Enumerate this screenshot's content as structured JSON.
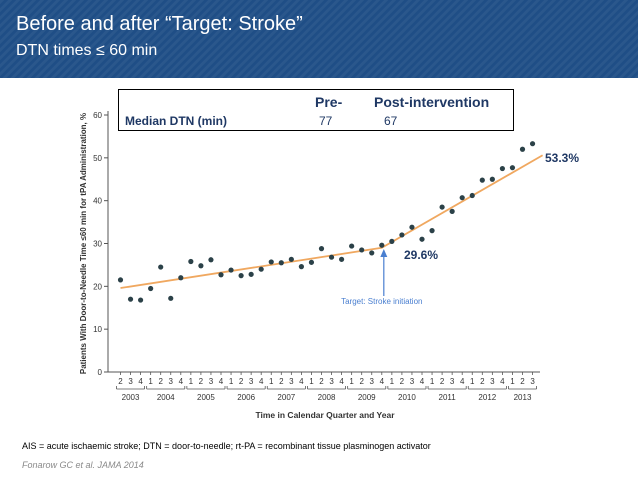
{
  "header": {
    "title": "Before and after “Target: Stroke”",
    "subtitle": "DTN times ≤ 60 min"
  },
  "table": {
    "col_pre": "Pre-",
    "col_post": "Post-intervention",
    "row_label": "Median DTN (min)",
    "pre_value": "77",
    "post_value": "67"
  },
  "callouts": {
    "end_pct": "53.3%",
    "initiation_pct": "29.6%"
  },
  "chart_data": {
    "type": "scatter",
    "xlabel": "Time in Calendar Quarter and Year",
    "ylabel": "Patients With Door-to-Needle Time ≤60 min for tPA Administration, %",
    "ylim": [
      0,
      60
    ],
    "yticks": [
      0,
      10,
      20,
      30,
      40,
      50,
      60
    ],
    "quarter_labels": [
      "2",
      "3",
      "4",
      "1",
      "2",
      "3",
      "4",
      "1",
      "2",
      "3",
      "4",
      "1",
      "2",
      "3",
      "4",
      "1",
      "2",
      "3",
      "4",
      "1",
      "2",
      "3",
      "4",
      "1",
      "2",
      "3",
      "4",
      "1",
      "2",
      "3",
      "4",
      "1",
      "2",
      "3",
      "4",
      "1",
      "2",
      "3",
      "4",
      "1",
      "2",
      "3"
    ],
    "years": [
      {
        "label": "2003",
        "start": 0,
        "end": 2
      },
      {
        "label": "2004",
        "start": 3,
        "end": 6
      },
      {
        "label": "2005",
        "start": 7,
        "end": 10
      },
      {
        "label": "2006",
        "start": 11,
        "end": 14
      },
      {
        "label": "2007",
        "start": 15,
        "end": 18
      },
      {
        "label": "2008",
        "start": 19,
        "end": 22
      },
      {
        "label": "2009",
        "start": 23,
        "end": 26
      },
      {
        "label": "2010",
        "start": 27,
        "end": 30
      },
      {
        "label": "2011",
        "start": 31,
        "end": 34
      },
      {
        "label": "2012",
        "start": 35,
        "end": 38
      },
      {
        "label": "2013",
        "start": 39,
        "end": 41
      }
    ],
    "points": [
      21.5,
      17,
      16.8,
      19.5,
      24.5,
      17.2,
      22,
      25.8,
      24.8,
      26.2,
      22.7,
      23.8,
      22.5,
      22.8,
      24,
      25.7,
      25.5,
      26.3,
      24.6,
      25.6,
      28.8,
      26.8,
      26.3,
      29.4,
      28.5,
      27.8,
      29.6,
      30.5,
      32,
      33.8,
      31,
      33,
      38.5,
      37.5,
      40.7,
      41.2,
      44.8,
      45,
      47.5,
      47.7,
      52,
      53.3
    ],
    "trend": [
      {
        "index": 0,
        "value": 19.6
      },
      {
        "index": 26,
        "value": 29.0
      },
      {
        "index": 42,
        "value": 50.6
      }
    ],
    "annotation": {
      "label": "Target: Stroke initiation",
      "index": 26.2
    },
    "colors": {
      "points": "#2b4148",
      "trend": "#f0a860",
      "annotation": "#4a7fd0"
    }
  },
  "footnote": "AIS = acute ischaemic stroke; DTN = door-to-needle; rt-PA = recombinant tissue plasminogen activator",
  "citation": "Fonarow GC et al. JAMA 2014"
}
